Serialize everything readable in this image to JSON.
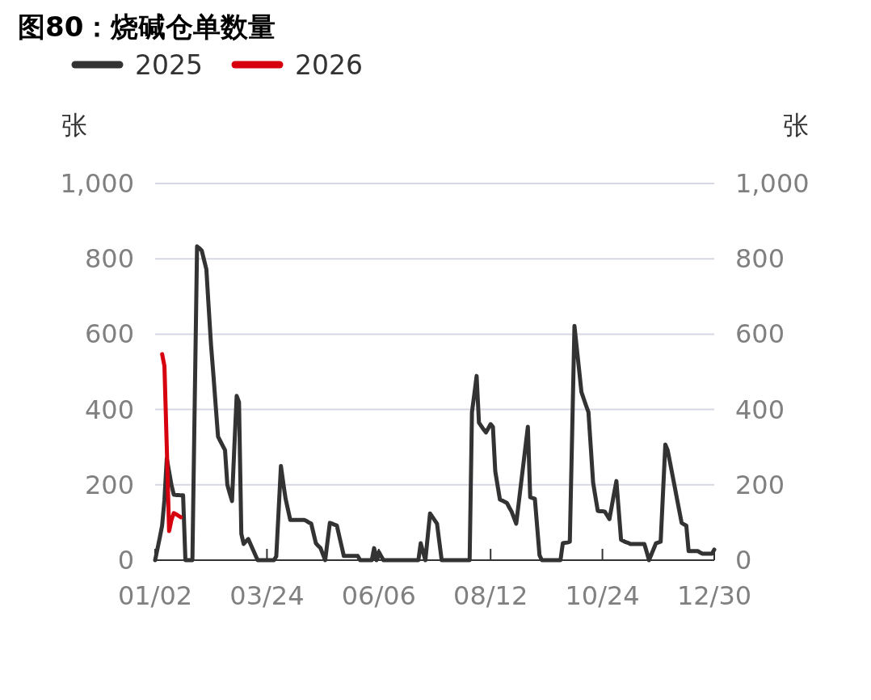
{
  "chart_data": {
    "type": "line",
    "title": "图80：烧碱仓单数量",
    "categories": [
      "01/02",
      null,
      null,
      null,
      null,
      null,
      null,
      null,
      null,
      null,
      null,
      null,
      null,
      null,
      null,
      null,
      null,
      null,
      null,
      null,
      null,
      null,
      null,
      null,
      null,
      null,
      null,
      null,
      null,
      null,
      null,
      null,
      null,
      null,
      null,
      null,
      null,
      null,
      null,
      null,
      null,
      null,
      null,
      null,
      null,
      null,
      null,
      null,
      "03/24",
      null,
      null,
      null,
      null,
      null,
      null,
      null,
      null,
      null,
      null,
      null,
      null,
      null,
      null,
      null,
      null,
      null,
      null,
      null,
      null,
      null,
      null,
      null,
      null,
      null,
      null,
      null,
      null,
      null,
      null,
      null,
      null,
      null,
      null,
      null,
      null,
      null,
      null,
      null,
      null,
      null,
      null,
      null,
      null,
      null,
      null,
      null,
      "06/06",
      null,
      null,
      null,
      null,
      null,
      null,
      null,
      null,
      null,
      null,
      null,
      null,
      null,
      null,
      null,
      null,
      null,
      null,
      null,
      null,
      null,
      null,
      null,
      null,
      null,
      null,
      null,
      null,
      null,
      null,
      null,
      null,
      null,
      null,
      null,
      null,
      null,
      null,
      null,
      null,
      null,
      null,
      null,
      null,
      null,
      null,
      null,
      "08/12",
      null,
      null,
      null,
      null,
      null,
      null,
      null,
      null,
      null,
      null,
      null,
      null,
      null,
      null,
      null,
      null,
      null,
      null,
      null,
      null,
      null,
      null,
      null,
      null,
      null,
      null,
      null,
      null,
      null,
      null,
      null,
      null,
      null,
      null,
      null,
      null,
      null,
      null,
      null,
      null,
      null,
      null,
      null,
      null,
      null,
      null,
      null,
      "10/24",
      null,
      null,
      null,
      null,
      null,
      null,
      null,
      null,
      null,
      null,
      null,
      null,
      null,
      null,
      null,
      null,
      null,
      null,
      null,
      null,
      null,
      null,
      null,
      null,
      null,
      null,
      null,
      null,
      null,
      null,
      null,
      null,
      null,
      null,
      null,
      null,
      null,
      null,
      null,
      null,
      null,
      null,
      null,
      null,
      null,
      null,
      null,
      "12/30"
    ],
    "series": [
      {
        "name": "2025",
        "color": "#333333",
        "values": [
          0,
          30,
          60,
          92,
          160,
          270,
          235,
          200,
          174,
          173,
          173,
          172,
          172,
          0,
          0,
          0,
          0,
          420,
          833,
          828,
          822,
          797,
          772,
          670,
          571,
          493,
          410,
          328,
          316,
          304,
          292,
          200,
          178,
          157,
          300,
          436,
          420,
          70,
          43,
          50,
          56,
          42,
          28,
          14,
          0,
          0,
          0,
          0,
          0,
          0,
          0,
          0,
          10,
          130,
          250,
          205,
          163,
          135,
          107,
          107,
          107,
          107,
          107,
          107,
          107,
          104,
          100,
          97,
          71,
          45,
          38,
          32,
          16,
          0,
          50,
          99,
          97,
          94,
          92,
          65,
          38,
          11,
          11,
          11,
          11,
          11,
          11,
          11,
          0,
          0,
          0,
          0,
          0,
          0,
          32,
          0,
          22,
          11,
          0,
          0,
          0,
          0,
          0,
          0,
          0,
          0,
          0,
          0,
          0,
          0,
          0,
          0,
          0,
          0,
          45,
          22,
          0,
          62,
          124,
          115,
          106,
          97,
          48,
          0,
          0,
          0,
          0,
          0,
          0,
          0,
          0,
          0,
          0,
          0,
          0,
          0,
          393,
          440,
          489,
          365,
          356,
          347,
          339,
          350,
          361,
          354,
          236,
          198,
          161,
          158,
          155,
          152,
          140,
          129,
          113,
          97,
          148,
          200,
          251,
          303,
          354,
          167,
          165,
          163,
          88,
          13,
          0,
          0,
          0,
          0,
          0,
          0,
          0,
          0,
          0,
          45,
          46,
          47,
          49,
          335,
          622,
          563,
          505,
          446,
          428,
          410,
          393,
          300,
          206,
          168,
          131,
          130,
          130,
          129,
          119,
          109,
          143,
          177,
          210,
          132,
          54,
          51,
          48,
          46,
          43,
          43,
          43,
          43,
          43,
          43,
          43,
          22,
          0,
          15,
          30,
          45,
          47,
          49,
          178,
          307,
          292,
          260,
          228,
          196,
          163,
          131,
          99,
          95,
          92,
          24,
          24,
          24,
          24,
          24,
          20,
          17,
          17,
          17,
          17,
          17,
          28
        ]
      },
      {
        "name": "2026",
        "color": "#d7000f",
        "values": [
          null,
          null,
          null,
          547,
          515,
          300,
          77,
          107,
          125,
          122,
          118,
          114,
          null,
          null,
          null,
          null,
          null,
          null,
          null,
          null,
          null,
          null,
          null,
          null,
          null,
          null,
          null,
          null,
          null,
          null,
          null,
          null,
          null,
          null,
          null,
          null,
          null,
          null,
          null,
          null,
          null,
          null,
          null,
          null,
          null,
          null,
          null,
          null,
          null,
          null,
          null,
          null,
          null,
          null,
          null,
          null,
          null,
          null,
          null,
          null,
          null,
          null,
          null,
          null,
          null,
          null,
          null,
          null,
          null,
          null,
          null,
          null,
          null,
          null,
          null,
          null,
          null,
          null,
          null,
          null,
          null,
          null,
          null,
          null,
          null,
          null,
          null,
          null,
          null,
          null,
          null,
          null,
          null,
          null,
          null,
          null,
          null,
          null,
          null,
          null,
          null,
          null,
          null,
          null,
          null,
          null,
          null,
          null,
          null,
          null,
          null,
          null,
          null,
          null,
          null,
          null,
          null,
          null,
          null,
          null,
          null,
          null,
          null,
          null,
          null,
          null,
          null,
          null,
          null,
          null,
          null,
          null,
          null,
          null,
          null,
          null,
          null,
          null,
          null,
          null,
          null,
          null,
          null,
          null,
          null,
          null,
          null,
          null,
          null,
          null,
          null,
          null,
          null,
          null,
          null,
          null,
          null,
          null,
          null,
          null,
          null,
          null,
          null,
          null,
          null,
          null,
          null,
          null,
          null,
          null,
          null,
          null,
          null,
          null,
          null,
          null,
          null,
          null,
          null,
          null,
          null,
          null,
          null,
          null,
          null,
          null,
          null,
          null,
          null,
          null,
          null,
          null,
          null,
          null,
          null,
          null,
          null,
          null,
          null,
          null,
          null,
          null,
          null,
          null,
          null,
          null,
          null,
          null,
          null,
          null,
          null,
          null,
          null,
          null,
          null,
          null,
          null,
          null,
          null,
          null,
          null,
          null,
          null,
          null,
          null,
          null,
          null,
          null,
          null,
          null,
          null,
          null,
          null,
          null,
          null,
          null,
          null,
          null,
          null,
          null,
          null
        ]
      }
    ],
    "ylabel": "张",
    "y2label": "张",
    "ylim": [
      0,
      1000
    ],
    "yticks": [
      0,
      200,
      400,
      600,
      800,
      {
        "value": 1000,
        "label": "1,000"
      }
    ],
    "y2lim": [
      0,
      1000
    ],
    "y2ticks": [
      0,
      200,
      400,
      600,
      800,
      {
        "value": 1000,
        "label": "1,000"
      }
    ],
    "grid": "y",
    "legend": "top left",
    "line_style": "solid",
    "marker": "none"
  }
}
